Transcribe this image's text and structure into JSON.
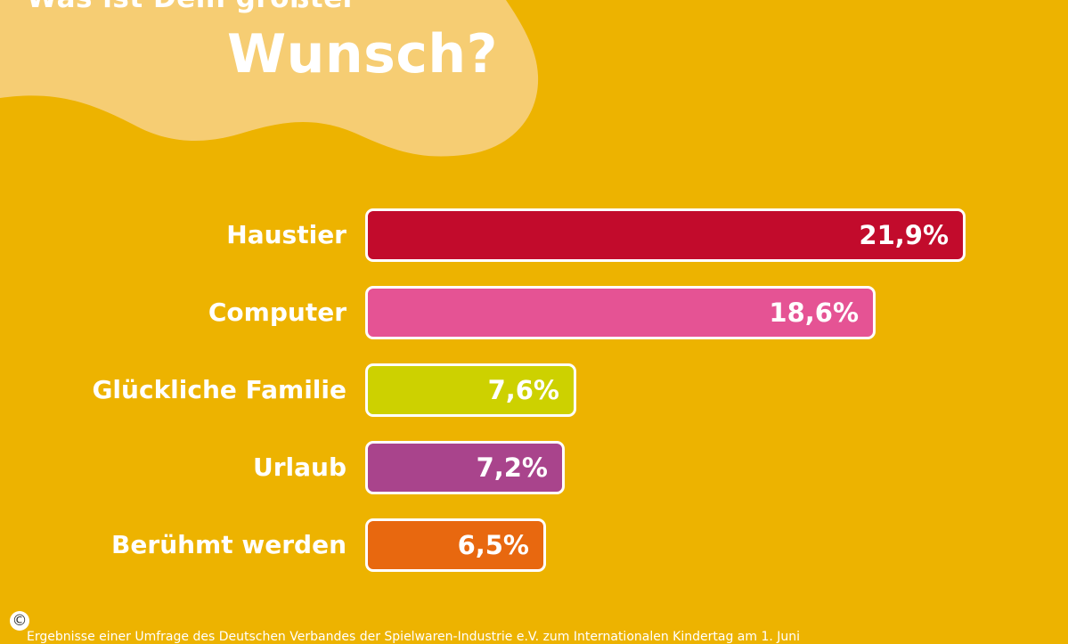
{
  "title": {
    "line1": "Was ist Dein größter",
    "line2": "Wunsch?"
  },
  "colors": {
    "background": "#EDB300",
    "blob": "#F6CD73",
    "bar_border": "#FFFFFF"
  },
  "icons": {
    "copyright": "copyright-icon"
  },
  "footnote": "Ergebnisse einer Umfrage des Deutschen Verbandes der Spielwaren-Industrie e.V. zum Internationalen Kindertag am 1. Juni",
  "chart_data": {
    "type": "bar",
    "orientation": "horizontal",
    "title": "Was ist Dein größter Wunsch?",
    "xlim": [
      0,
      25
    ],
    "grid": false,
    "categories": [
      "Haustier",
      "Computer",
      "Glückliche Familie",
      "Urlaub",
      "Berühmt werden"
    ],
    "values": [
      21.9,
      18.6,
      7.6,
      7.2,
      6.5
    ],
    "labels": [
      "21,9%",
      "18,6%",
      "7,6%",
      "7,2%",
      "6,5%"
    ],
    "colors": [
      "#C20B2C",
      "#E55394",
      "#CDD100",
      "#A9448C",
      "#E8680F"
    ]
  }
}
